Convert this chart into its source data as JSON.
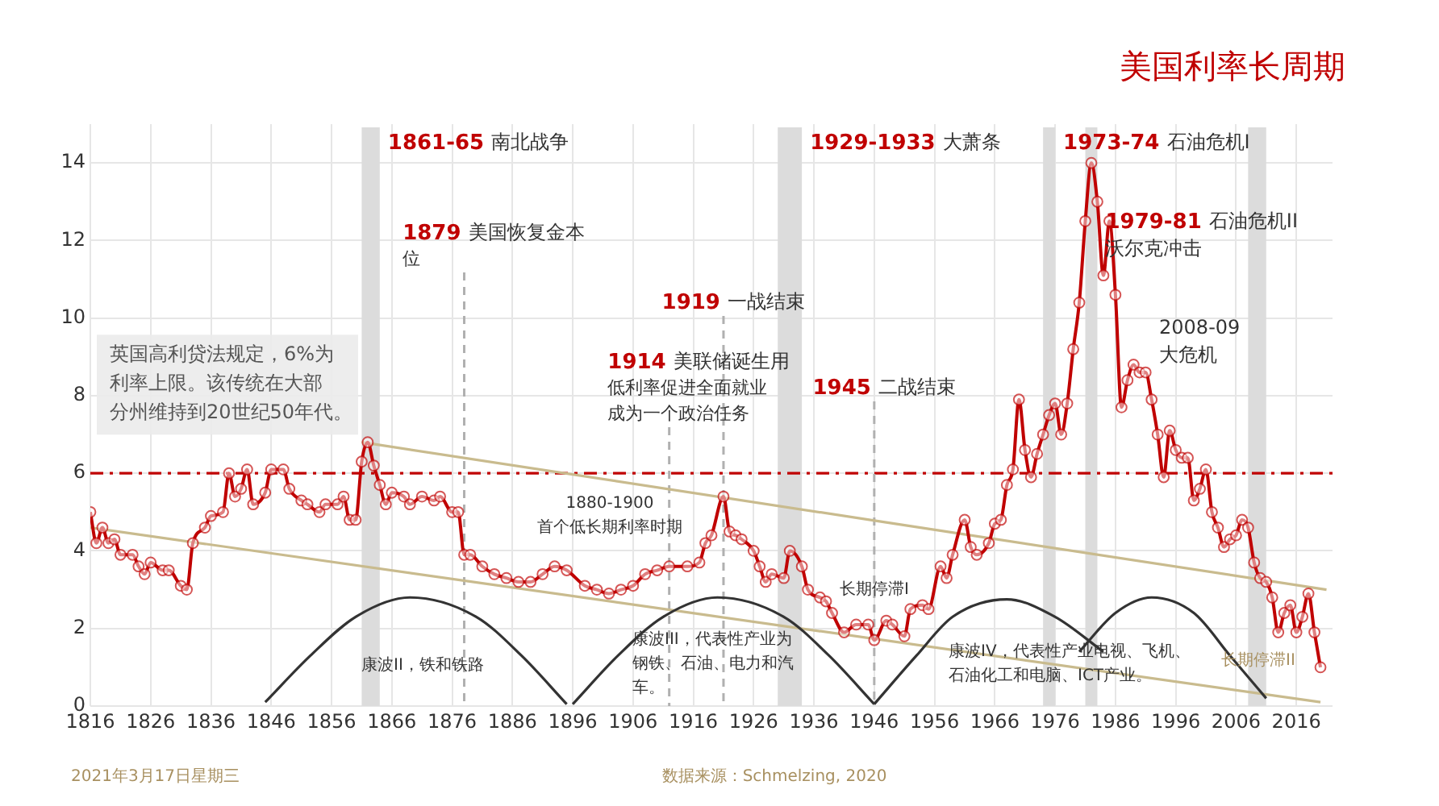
{
  "chart_data": {
    "type": "line",
    "title": "美国利率长周期",
    "xlim": [
      1816,
      2022
    ],
    "xticks": [
      1816,
      1826,
      1836,
      1846,
      1856,
      1866,
      1876,
      1886,
      1896,
      1906,
      1916,
      1926,
      1936,
      1946,
      1956,
      1966,
      1976,
      1986,
      1996,
      2006,
      2016
    ],
    "ylim": [
      0,
      15
    ],
    "yticks": [
      0,
      2,
      4,
      6,
      8,
      10,
      12,
      14
    ],
    "grid": true,
    "legend": false,
    "series": [
      {
        "color": "#c00000",
        "marker": "circle",
        "x": [
          1816,
          1817,
          1818,
          1819,
          1820,
          1821,
          1823,
          1824,
          1825,
          1826,
          1828,
          1829,
          1831,
          1832,
          1833,
          1835,
          1836,
          1838,
          1839,
          1840,
          1841,
          1842,
          1843,
          1845,
          1846,
          1848,
          1849,
          1851,
          1852,
          1854,
          1855,
          1857,
          1858,
          1859,
          1860,
          1861,
          1862,
          1863,
          1864,
          1865,
          1866,
          1868,
          1869,
          1871,
          1873,
          1874,
          1876,
          1877,
          1878,
          1879,
          1881,
          1883,
          1885,
          1887,
          1889,
          1891,
          1893,
          1895,
          1898,
          1900,
          1902,
          1904,
          1906,
          1908,
          1910,
          1912,
          1915,
          1917,
          1918,
          1919,
          1921,
          1922,
          1923,
          1924,
          1926,
          1927,
          1928,
          1929,
          1931,
          1932,
          1934,
          1935,
          1937,
          1938,
          1939,
          1941,
          1943,
          1945,
          1946,
          1948,
          1949,
          1951,
          1952,
          1954,
          1955,
          1957,
          1958,
          1959,
          1961,
          1962,
          1963,
          1965,
          1966,
          1967,
          1968,
          1969,
          1970,
          1971,
          1972,
          1973,
          1974,
          1975,
          1976,
          1977,
          1978,
          1979,
          1980,
          1981,
          1982,
          1983,
          1984,
          1985,
          1986,
          1987,
          1988,
          1989,
          1990,
          1991,
          1992,
          1993,
          1994,
          1995,
          1996,
          1997,
          1998,
          1999,
          2000,
          2001,
          2002,
          2003,
          2004,
          2005,
          2006,
          2007,
          2008,
          2009,
          2010,
          2011,
          2012,
          2013,
          2014,
          2015,
          2016,
          2017,
          2018,
          2019,
          2020
        ],
        "values": [
          5.0,
          4.2,
          4.6,
          4.2,
          4.3,
          3.9,
          3.9,
          3.6,
          3.4,
          3.7,
          3.5,
          3.5,
          3.1,
          3.0,
          4.2,
          4.6,
          4.9,
          5.0,
          6.0,
          5.4,
          5.6,
          6.1,
          5.2,
          5.5,
          6.1,
          6.1,
          5.6,
          5.3,
          5.2,
          5.0,
          5.2,
          5.2,
          5.4,
          4.8,
          4.8,
          6.3,
          6.8,
          6.2,
          5.7,
          5.2,
          5.5,
          5.4,
          5.2,
          5.4,
          5.3,
          5.4,
          5.0,
          5.0,
          3.9,
          3.9,
          3.6,
          3.4,
          3.3,
          3.2,
          3.2,
          3.4,
          3.6,
          3.5,
          3.1,
          3.0,
          2.9,
          3.0,
          3.1,
          3.4,
          3.5,
          3.6,
          3.6,
          3.7,
          4.2,
          4.4,
          5.4,
          4.5,
          4.4,
          4.3,
          4.0,
          3.6,
          3.2,
          3.4,
          3.3,
          4.0,
          3.6,
          3.0,
          2.8,
          2.7,
          2.4,
          1.9,
          2.1,
          2.1,
          1.7,
          2.2,
          2.1,
          1.8,
          2.5,
          2.6,
          2.5,
          3.6,
          3.3,
          3.9,
          4.8,
          4.1,
          3.9,
          4.2,
          4.7,
          4.8,
          5.7,
          6.1,
          7.9,
          6.6,
          5.9,
          6.5,
          7.0,
          7.5,
          7.8,
          7.0,
          7.8,
          9.2,
          10.4,
          12.5,
          14.0,
          13.0,
          11.1,
          12.5,
          10.6,
          7.7,
          8.4,
          8.8,
          8.6,
          8.6,
          7.9,
          7.0,
          5.9,
          7.1,
          6.6,
          6.4,
          6.4,
          5.3,
          5.6,
          6.1,
          5.0,
          4.6,
          4.1,
          4.3,
          4.4,
          4.8,
          4.6,
          3.7,
          3.3,
          3.2,
          2.8,
          1.9,
          2.4,
          2.6,
          1.9,
          2.3,
          2.9,
          1.9,
          1.0
        ]
      },
      {
        "color": "#333333",
        "marker": "none",
        "x": [
          1845,
          1852.5,
          1860,
          1869,
          1880,
          1887.5,
          1895
        ],
        "values": [
          0.1,
          1.3,
          2.3,
          2.8,
          2.3,
          1.3,
          0.05
        ]
      },
      {
        "color": "#333333",
        "marker": "none",
        "x": [
          1896,
          1903.5,
          1911,
          1920,
          1931,
          1938.5,
          1946
        ],
        "values": [
          0.05,
          1.3,
          2.3,
          2.8,
          2.3,
          1.3,
          0.05
        ]
      },
      {
        "color": "#333333",
        "marker": "none",
        "x": [
          1946,
          1953,
          1959,
          1968,
          1976,
          1984
        ],
        "values": [
          0.05,
          1.3,
          2.3,
          2.75,
          2.3,
          1.4
        ]
      },
      {
        "color": "#333333",
        "marker": "none",
        "x": [
          1980,
          1986,
          1992,
          1999,
          2005,
          2011
        ],
        "values": [
          1.4,
          2.4,
          2.8,
          2.4,
          1.3,
          0.2
        ]
      },
      {
        "color": "#c9bb8e",
        "marker": "none",
        "x": [
          1861,
          2021
        ],
        "values": [
          6.8,
          3.0
        ]
      },
      {
        "color": "#c9bb8e",
        "marker": "none",
        "x": [
          1816,
          2020
        ],
        "values": [
          4.6,
          0.1
        ]
      }
    ],
    "bands": [
      {
        "axis": "x",
        "from": 1861,
        "to": 1864,
        "label": "1861-65 南北战争",
        "color": "#dcdcdc"
      },
      {
        "axis": "x",
        "from": 1930,
        "to": 1934,
        "label": "1929-1933 大萧条",
        "color": "#dcdcdc"
      },
      {
        "axis": "x",
        "from": 1974,
        "to": 1976,
        "label": "1973-74 石油危机I",
        "color": "#dcdcdc"
      },
      {
        "axis": "x",
        "from": 1981,
        "to": 1983,
        "label": "1979-81 石油危机II\n沃尔克冲击",
        "color": "#dcdcdc"
      },
      {
        "axis": "x",
        "from": 2008,
        "to": 2011,
        "label": "2008-09\n大危机",
        "color": "#dcdcdc"
      }
    ],
    "ref_lines": [
      {
        "axis": "y",
        "value": 6,
        "label": "英国高利贷法规定，6%为利率上限。该传统在大部分州维持到20世纪50年代。",
        "color": "#c00000",
        "line_style": "dashdot"
      },
      {
        "axis": "x",
        "value": 1878,
        "label": "1879 美国恢复金本位",
        "color": "#b0b0b0",
        "line_style": "dashed"
      },
      {
        "axis": "x",
        "value": 1912,
        "label": "1914 美联储诞生用低利率促进全面就业成为一个政治任务",
        "color": "#b0b0b0",
        "line_style": "dashed"
      },
      {
        "axis": "x",
        "value": 1921,
        "label": "1919 一战结束",
        "color": "#b0b0b0",
        "line_style": "dashed"
      },
      {
        "axis": "x",
        "value": 1946,
        "label": "1945 二战结束",
        "color": "#b0b0b0",
        "line_style": "dashed"
      }
    ],
    "annotations": [
      "1880-1900\n首个低长期利率时期",
      "康波II，铁和铁路",
      "康波III，代表性产业为钢铁、石油、电力和汽车。",
      "康波IV，代表性产业电视、飞机、石油化工和电脑、ICT产业。",
      {
        "text": "长期停滞I",
        "x": 1946,
        "y": 3.0
      },
      "长期停滞II",
      "2021年3月17日星期三",
      "数据来源：Schmelzing, 2020"
    ]
  }
}
